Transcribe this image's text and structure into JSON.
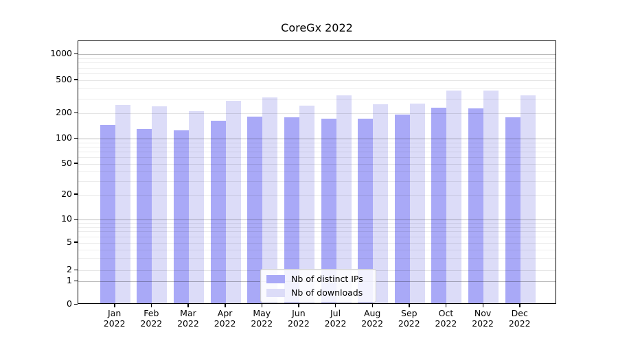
{
  "chart_data": {
    "type": "bar",
    "title": "CoreGx 2022",
    "categories": [
      "Jan 2022",
      "Feb 2022",
      "Mar 2022",
      "Apr 2022",
      "May 2022",
      "Jun 2022",
      "Jul 2022",
      "Aug 2022",
      "Sep 2022",
      "Oct 2022",
      "Nov 2022",
      "Dec 2022"
    ],
    "series": [
      {
        "name": "Nb of distinct IPs",
        "color": "#a9a9f7",
        "values": [
          140,
          125,
          120,
          157,
          176,
          174,
          167,
          166,
          185,
          225,
          222,
          174
        ]
      },
      {
        "name": "Nb of downloads",
        "color": "#dcdcf8",
        "values": [
          245,
          233,
          206,
          272,
          302,
          238,
          317,
          248,
          255,
          364,
          362,
          318
        ]
      }
    ],
    "xlabel": "",
    "ylabel": "",
    "yscale": "symlog",
    "yticks": [
      0,
      1,
      2,
      5,
      10,
      20,
      50,
      100,
      200,
      500,
      1000
    ],
    "ylim": [
      0,
      1400
    ],
    "grid": "both",
    "legend_position": "lower center"
  },
  "legend": {
    "items": [
      "Nb of distinct IPs",
      "Nb of downloads"
    ]
  }
}
